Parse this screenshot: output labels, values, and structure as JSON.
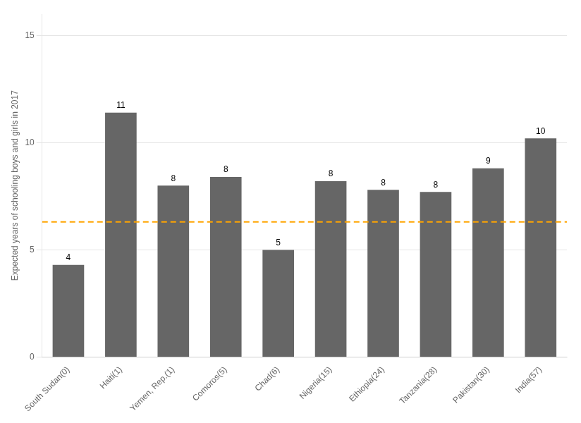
{
  "chart_data": {
    "type": "bar",
    "categories": [
      "South Sudan(0)",
      "Haiti(1)",
      "Yemen, Rep.(1)",
      "Comoros(5)",
      "Chad(6)",
      "Nigeria(15)",
      "Ethiopia(24)",
      "Tanzania(28)",
      "Pakistan(30)",
      "India(57)"
    ],
    "values": [
      4.3,
      11.4,
      8.0,
      8.4,
      5.0,
      8.2,
      7.8,
      7.7,
      8.8,
      10.2
    ],
    "value_labels": [
      "4",
      "11",
      "8",
      "8",
      "5",
      "8",
      "8",
      "8",
      "9",
      "10"
    ],
    "data_labels": true,
    "color": "#666666",
    "ylabel": "Expected years of schooling boys and girls in 2017",
    "ylim": [
      0,
      16
    ],
    "yticks": [
      0,
      5,
      10,
      15
    ],
    "grid": true,
    "reference_line": {
      "y": 6.3,
      "color": "#FFA500",
      "line_style": "dashed"
    }
  }
}
